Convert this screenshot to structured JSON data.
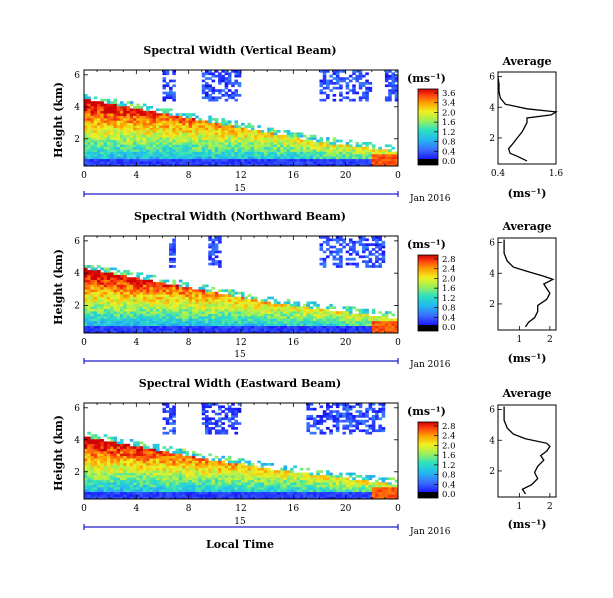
{
  "chart_data": [
    {
      "type": "heatmap",
      "title": "Spectral Width (Vertical Beam)",
      "xlabel": "",
      "ylabel": "Height (km)",
      "x_ticks": [
        "0",
        "4",
        "8",
        "12",
        "16",
        "20",
        "0"
      ],
      "y_ticks": [
        "6",
        "4",
        "2"
      ],
      "xlim_hours": [
        0,
        24
      ],
      "ylim_km": [
        0.3,
        6.3
      ],
      "date_marker": "15",
      "date_label": "Jan 2016",
      "colorbar": {
        "unit": "(ms⁻¹)",
        "ticks": [
          "3.6",
          "3.4",
          "2.0",
          "1.6",
          "1.2",
          "0.8",
          "0.4",
          "0.0"
        ],
        "range": [
          0.0,
          3.6
        ]
      },
      "features": {
        "boundary_layer_top_km": [
          4.5,
          4.2,
          3.9,
          3.6,
          3.3,
          3.0,
          2.7,
          2.4,
          2.1,
          1.8,
          1.6,
          1.4,
          1.2
        ],
        "boundary_layer_top_hours": [
          0,
          2,
          4,
          6,
          8,
          10,
          12,
          14,
          16,
          18,
          20,
          22,
          24
        ],
        "upper_echo_hours": [
          [
            6,
            7
          ],
          [
            9,
            12
          ],
          [
            18,
            22
          ],
          [
            23,
            24
          ]
        ]
      },
      "average_profile": {
        "title": "Average",
        "xlabel": "(ms⁻¹)",
        "x_ticks": [
          "0.4",
          "1.6"
        ],
        "y_ticks": [
          "6",
          "4",
          "2"
        ],
        "xlim": [
          0.4,
          1.6
        ],
        "ylim_km": [
          0.3,
          6.3
        ],
        "heights_km": [
          0.5,
          0.8,
          1.0,
          1.3,
          1.6,
          2.0,
          2.4,
          2.7,
          3.0,
          3.3,
          3.5,
          3.7,
          3.9,
          4.2,
          4.6,
          5.0,
          5.5,
          6.0
        ],
        "values": [
          1.0,
          0.8,
          0.65,
          0.62,
          0.7,
          0.8,
          0.9,
          0.95,
          1.0,
          1.0,
          1.5,
          1.6,
          1.0,
          0.55,
          0.45,
          0.42,
          0.42,
          0.4
        ]
      }
    },
    {
      "type": "heatmap",
      "title": "Spectral Width (Northward Beam)",
      "xlabel": "",
      "ylabel": "Height (km)",
      "x_ticks": [
        "0",
        "4",
        "8",
        "12",
        "16",
        "20",
        "0"
      ],
      "y_ticks": [
        "6",
        "4",
        "2"
      ],
      "xlim_hours": [
        0,
        24
      ],
      "ylim_km": [
        0.3,
        6.3
      ],
      "date_marker": "15",
      "date_label": "Jan 2016",
      "colorbar": {
        "unit": "(ms⁻¹)",
        "ticks": [
          "2.8",
          "2.4",
          "2.0",
          "1.6",
          "1.2",
          "0.8",
          "0.4",
          "0.0"
        ],
        "range": [
          0.0,
          2.8
        ]
      },
      "features": {
        "boundary_layer_top_km": [
          4.3,
          4.0,
          3.7,
          3.4,
          3.1,
          2.8,
          2.5,
          2.2,
          2.0,
          1.8,
          1.6,
          1.4,
          1.2
        ],
        "boundary_layer_top_hours": [
          0,
          2,
          4,
          6,
          8,
          10,
          12,
          14,
          16,
          18,
          20,
          22,
          24
        ],
        "upper_echo_hours": [
          [
            6.5,
            7
          ],
          [
            9.5,
            10.5
          ],
          [
            18,
            23
          ]
        ]
      },
      "average_profile": {
        "title": "Average",
        "xlabel": "(ms⁻¹)",
        "x_ticks": [
          "1",
          "2"
        ],
        "y_ticks": [
          "6",
          "4",
          "2"
        ],
        "xlim": [
          0.3,
          2.2
        ],
        "ylim_km": [
          0.3,
          6.3
        ],
        "heights_km": [
          0.5,
          0.8,
          1.1,
          1.5,
          1.9,
          2.3,
          2.7,
          3.0,
          3.3,
          3.6,
          3.8,
          4.1,
          4.4,
          4.8,
          5.3,
          5.8,
          6.2
        ],
        "values": [
          1.2,
          1.3,
          1.5,
          1.6,
          1.6,
          1.9,
          2.0,
          1.9,
          1.8,
          2.1,
          1.8,
          1.3,
          0.8,
          0.6,
          0.5,
          0.5,
          0.5
        ]
      }
    },
    {
      "type": "heatmap",
      "title": "Spectral Width (Eastward Beam)",
      "xlabel": "Local Time",
      "ylabel": "Height (km)",
      "x_ticks": [
        "0",
        "4",
        "8",
        "12",
        "16",
        "20",
        "0"
      ],
      "y_ticks": [
        "6",
        "4",
        "2"
      ],
      "xlim_hours": [
        0,
        24
      ],
      "ylim_km": [
        0.3,
        6.3
      ],
      "date_marker": "15",
      "date_label": "Jan 2016",
      "colorbar": {
        "unit": "(ms⁻¹)",
        "ticks": [
          "2.8",
          "2.4",
          "2.0",
          "1.6",
          "1.2",
          "0.8",
          "0.4",
          "0.0"
        ],
        "range": [
          0.0,
          2.8
        ]
      },
      "features": {
        "boundary_layer_top_km": [
          4.2,
          3.9,
          3.6,
          3.3,
          3.0,
          2.7,
          2.5,
          2.2,
          2.0,
          1.8,
          1.6,
          1.4,
          1.2
        ],
        "boundary_layer_top_hours": [
          0,
          2,
          4,
          6,
          8,
          10,
          12,
          14,
          16,
          18,
          20,
          22,
          24
        ],
        "upper_echo_hours": [
          [
            6,
            7
          ],
          [
            9,
            12
          ],
          [
            17,
            23
          ]
        ]
      },
      "average_profile": {
        "title": "Average",
        "xlabel": "(ms⁻¹)",
        "x_ticks": [
          "1",
          "2"
        ],
        "y_ticks": [
          "6",
          "4",
          "2"
        ],
        "xlim": [
          0.3,
          2.2
        ],
        "ylim_km": [
          0.3,
          6.3
        ],
        "heights_km": [
          0.5,
          0.8,
          1.1,
          1.5,
          1.9,
          2.3,
          2.7,
          3.0,
          3.3,
          3.6,
          3.8,
          4.1,
          4.4,
          4.8,
          5.3,
          5.8,
          6.2
        ],
        "values": [
          1.2,
          1.1,
          1.4,
          1.6,
          1.5,
          1.6,
          1.8,
          1.7,
          1.9,
          2.0,
          1.9,
          1.2,
          0.8,
          0.6,
          0.5,
          0.5,
          0.5
        ]
      }
    }
  ]
}
